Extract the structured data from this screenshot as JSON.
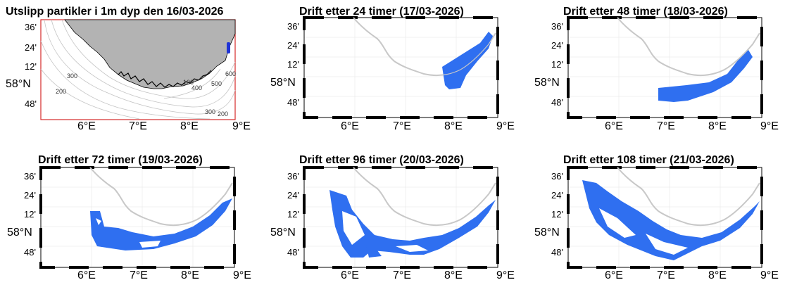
{
  "panels": [
    {
      "title": "Utslipp partikler i 1m dyp den 16/03-2026",
      "type": "release"
    },
    {
      "title": "Drift etter 24 timer (17/03-2026)",
      "type": "drift"
    },
    {
      "title": "Drift etter 48 timer (18/03-2026)",
      "type": "drift"
    },
    {
      "title": "Drift etter 72 timer (19/03-2026)",
      "type": "drift"
    },
    {
      "title": "Drift etter 96 timer (20/03-2026)",
      "type": "drift"
    },
    {
      "title": "Drift etter 108 timer (21/03-2026)",
      "type": "drift"
    }
  ],
  "axes": {
    "lon_labels": [
      "6°E",
      "7°E",
      "8°E",
      "9°E"
    ],
    "lat_labels": [
      "36'",
      "24'",
      "12'",
      "58°N",
      "48'"
    ]
  },
  "contour_labels": [
    "300",
    "200",
    "100",
    "400",
    "500",
    "600",
    "300",
    "200"
  ],
  "colors": {
    "land": "#b3b3b3",
    "coast_line": "#c8c8c8",
    "particles": "#2f6ff0",
    "release_points": "#1f33d6",
    "map_border_red": "#d42a2a"
  }
}
